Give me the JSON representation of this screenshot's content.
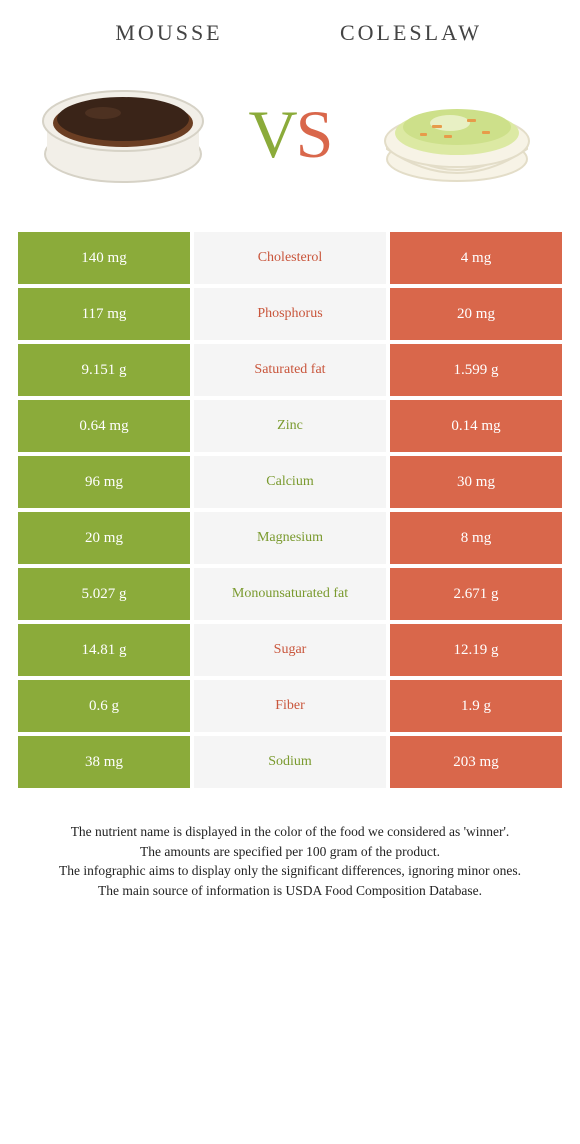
{
  "colors": {
    "green": "#8bab3a",
    "orange": "#d9674b",
    "mid_bg": "#f5f5f5",
    "nutrient_green": "#7a9a2e",
    "nutrient_orange": "#c9563c"
  },
  "left_food": {
    "name": "MOUSSE"
  },
  "right_food": {
    "name": "COLESLAW"
  },
  "vs": {
    "v": "V",
    "s": "S"
  },
  "rows": [
    {
      "left": "140 mg",
      "label": "Cholesterol",
      "right": "4 mg",
      "winner": "orange"
    },
    {
      "left": "117 mg",
      "label": "Phosphorus",
      "right": "20 mg",
      "winner": "orange"
    },
    {
      "left": "9.151 g",
      "label": "Saturated fat",
      "right": "1.599 g",
      "winner": "orange"
    },
    {
      "left": "0.64 mg",
      "label": "Zinc",
      "right": "0.14 mg",
      "winner": "green"
    },
    {
      "left": "96 mg",
      "label": "Calcium",
      "right": "30 mg",
      "winner": "green"
    },
    {
      "left": "20 mg",
      "label": "Magnesium",
      "right": "8 mg",
      "winner": "green"
    },
    {
      "left": "5.027 g",
      "label": "Monounsaturated fat",
      "right": "2.671 g",
      "winner": "green"
    },
    {
      "left": "14.81 g",
      "label": "Sugar",
      "right": "12.19 g",
      "winner": "orange"
    },
    {
      "left": "0.6 g",
      "label": "Fiber",
      "right": "1.9 g",
      "winner": "orange"
    },
    {
      "left": "38 mg",
      "label": "Sodium",
      "right": "203 mg",
      "winner": "green"
    }
  ],
  "footer": {
    "l1": "The nutrient name is displayed in the color of the food we considered as 'winner'.",
    "l2": "The amounts are specified per 100 gram of the product.",
    "l3": "The infographic aims to display only the significant differences, ignoring minor ones.",
    "l4": "The main source of information is USDA Food Composition Database."
  }
}
